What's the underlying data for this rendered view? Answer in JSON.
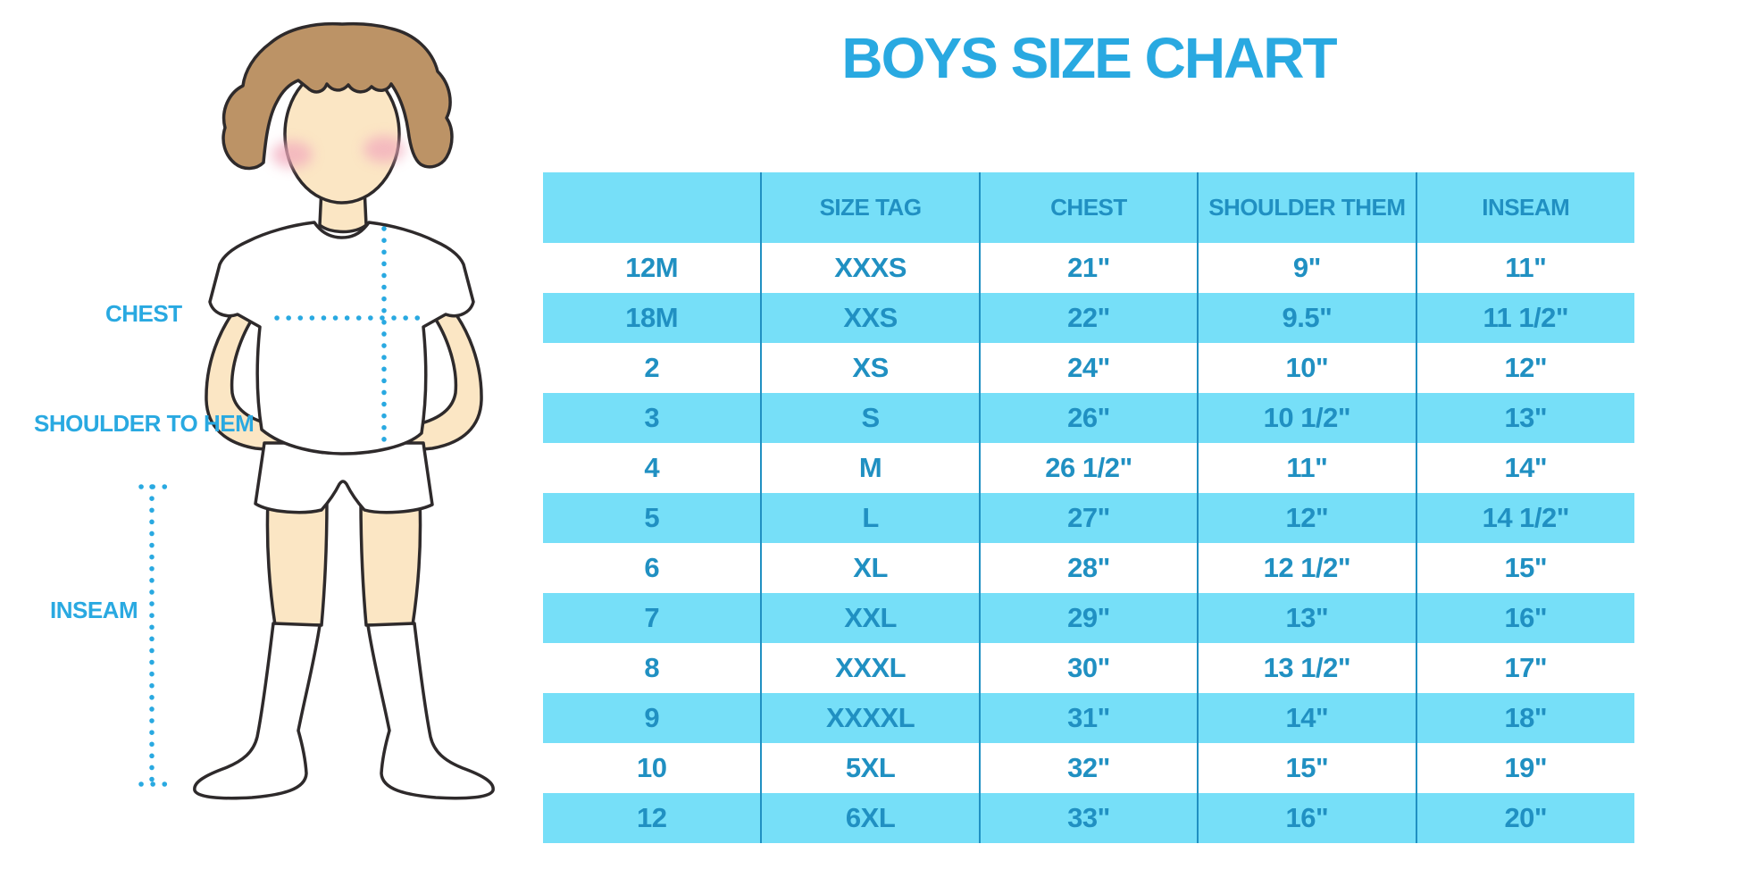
{
  "title": "BOYS SIZE CHART",
  "figure_labels": {
    "chest": "CHEST",
    "shoulder_to_hem": "SHOULDER TO HEM",
    "inseam": "INSEAM"
  },
  "chart_data": {
    "type": "table",
    "title": "BOYS SIZE CHART",
    "columns": [
      "",
      "SIZE TAG",
      "CHEST",
      "SHOULDER THEM",
      "INSEAM"
    ],
    "rows": [
      [
        "12M",
        "XXXS",
        "21\"",
        "9\"",
        "11\""
      ],
      [
        "18M",
        "XXS",
        "22\"",
        "9.5\"",
        "11 1/2\""
      ],
      [
        "2",
        "XS",
        "24\"",
        "10\"",
        "12\""
      ],
      [
        "3",
        "S",
        "26\"",
        "10 1/2\"",
        "13\""
      ],
      [
        "4",
        "M",
        "26 1/2\"",
        "11\"",
        "14\""
      ],
      [
        "5",
        "L",
        "27\"",
        "12\"",
        "14 1/2\""
      ],
      [
        "6",
        "XL",
        "28\"",
        "12 1/2\"",
        "15\""
      ],
      [
        "7",
        "XXL",
        "29\"",
        "13\"",
        "16\""
      ],
      [
        "8",
        "XXXL",
        "30\"",
        "13 1/2\"",
        "17\""
      ],
      [
        "9",
        "XXXXL",
        "31\"",
        "14\"",
        "18\""
      ],
      [
        "10",
        "5XL",
        "32\"",
        "15\"",
        "19\""
      ],
      [
        "12",
        "6XL",
        "33\"",
        "16\"",
        "20\""
      ]
    ]
  },
  "colors": {
    "accent": "#29A9E1",
    "band": "#76DFF8",
    "table_text": "#2090C2",
    "divider": "#2090C2",
    "dots": "#29A9E1",
    "skin": "#FBE6C4",
    "hair": "#BC9366",
    "blush": "#F2ABBD",
    "outline": "#2E2A2B"
  }
}
